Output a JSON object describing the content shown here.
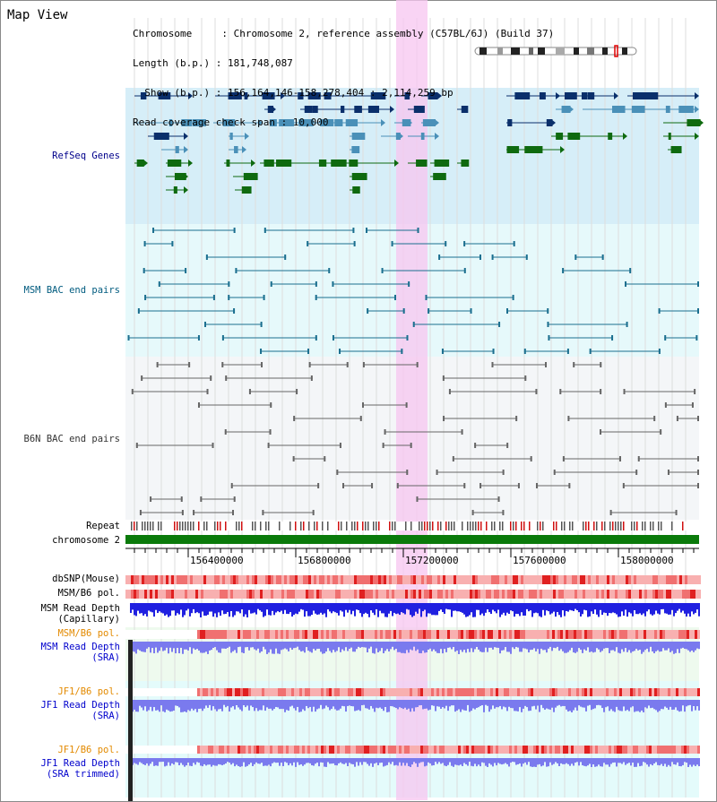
{
  "app": {
    "title": "Map View"
  },
  "info": {
    "chromosome": "Chromosome     : Chromosome 2, reference assembly (C57BL/6J) (Build 37)",
    "length": "Length (b.p.) : 181,748,087",
    "show": "  Show (b.p.) : 156,164,146-158,278,404 : 2,114,259 bp",
    "coverage": "Read coverage check span : 10,000"
  },
  "tracks": {
    "refseq": {
      "label": "RefSeq Genes",
      "color": "#00008b"
    },
    "msm_bac": {
      "label": "MSM BAC end pairs",
      "color": "#005b7f"
    },
    "b6n_bac": {
      "label": "B6N BAC end pairs",
      "color": "#333333"
    },
    "repeat": {
      "label": "Repeat",
      "color": "#000000"
    },
    "chrom": {
      "label": "chromosome 2",
      "color": "#000000"
    },
    "dbsnp": {
      "label": "dbSNP(Mouse)",
      "color": "#000000"
    },
    "msm_b6_pol": {
      "label": "MSM/B6 pol.",
      "color": "#000000"
    },
    "msm_depth_cap": {
      "label": "MSM Read Depth\n(Capillary)",
      "color": "#000000"
    },
    "msm_b6_pol2": {
      "label": "MSM/B6 pol.",
      "color": "#e38a00"
    },
    "msm_depth_sra": {
      "label": "MSM Read Depth\n(SRA)",
      "color": "#0000cc"
    },
    "jf1_b6_pol": {
      "label": "JF1/B6 pol.",
      "color": "#e38a00"
    },
    "jf1_depth_sra": {
      "label": "JF1 Read Depth\n(SRA)",
      "color": "#0000cc"
    },
    "jf1_b6_pol2": {
      "label": "JF1/B6 pol.",
      "color": "#e38a00"
    },
    "jf1_depth_trim": {
      "label": "JF1 Read Depth\n(SRA trimmed)",
      "color": "#0000cc"
    }
  },
  "axis": {
    "ticks": [
      "156400000",
      "156800000",
      "157200000",
      "157600000",
      "158000000"
    ]
  },
  "colors": {
    "refseq_bg": "#d6eef8",
    "msm_bg": "#e6f9fb",
    "b6n_bg": "#f4f6f8",
    "highlight": "#f7c6f0",
    "gene_dark": "#0a2f6b",
    "gene_mid": "#4a90b8",
    "gene_green": "#0f6a0f",
    "chrom_green": "#0a7a0a",
    "depth_blue": "#2020e0",
    "sra_blue": "#7a7aee"
  }
}
